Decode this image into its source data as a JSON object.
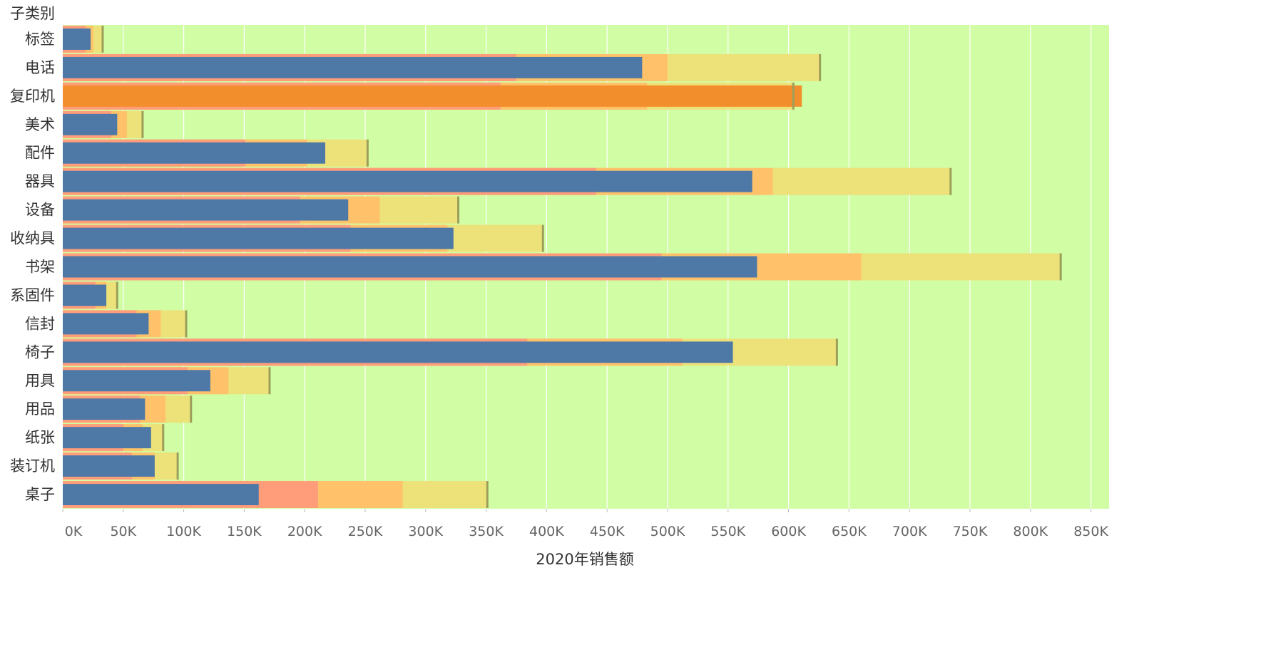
{
  "chart_data": {
    "type": "bar",
    "subtype": "bullet",
    "title": "",
    "xlabel": "2020年销售额",
    "ylabel": "子类别",
    "xlim": [
      0,
      865000
    ],
    "x_ticks": [
      0,
      50000,
      100000,
      150000,
      200000,
      250000,
      300000,
      350000,
      400000,
      450000,
      500000,
      550000,
      600000,
      650000,
      700000,
      750000,
      800000,
      850000
    ],
    "x_tick_labels": [
      "0K",
      "50K",
      "100K",
      "150K",
      "200K",
      "250K",
      "300K",
      "350K",
      "400K",
      "450K",
      "500K",
      "550K",
      "600K",
      "650K",
      "700K",
      "750K",
      "800K",
      "850K"
    ],
    "grid": true,
    "categories": [
      "标签",
      "电话",
      "复印机",
      "美术",
      "配件",
      "器具",
      "设备",
      "收纳具",
      "书架",
      "系固件",
      "信封",
      "椅子",
      "用具",
      "用品",
      "纸张",
      "装订机",
      "桌子"
    ],
    "series": [
      {
        "values": [
          23000,
          479000,
          611000,
          45000,
          217000,
          570000,
          236000,
          323000,
          574000,
          36000,
          71000,
          554000,
          122000,
          68000,
          73000,
          76000,
          162000
        ]
      }
    ],
    "reference_line": [
      33000,
      626000,
      604000,
      66000,
      252000,
      734000,
      327000,
      397000,
      825000,
      45000,
      102000,
      640000,
      171000,
      106000,
      83000,
      95000,
      351000
    ],
    "bands": [
      [
        19000,
        375000,
        362000,
        40000,
        151000,
        441000,
        196000,
        238000,
        495000,
        27000,
        61000,
        384000,
        103000,
        64000,
        50000,
        57000,
        211000
      ],
      [
        25000,
        500000,
        483000,
        53000,
        202000,
        587000,
        262000,
        318000,
        660000,
        36000,
        81000,
        512000,
        137000,
        85000,
        66000,
        76000,
        281000
      ],
      [
        33000,
        626000,
        604000,
        66000,
        252000,
        734000,
        327000,
        397000,
        825000,
        45000,
        102000,
        640000,
        171000,
        106000,
        83000,
        95000,
        351000
      ]
    ],
    "colors": {
      "bar": "#4e79a7",
      "highlight_bar": "#f28e2b",
      "band_1": "#ff9d7a",
      "band_2": "#ffc169",
      "band_3": "#ede17a",
      "background": "#d1fda4",
      "reference_line": "#9c9f5a",
      "grid": "#ffffff"
    },
    "highlight_category": "复印机"
  }
}
